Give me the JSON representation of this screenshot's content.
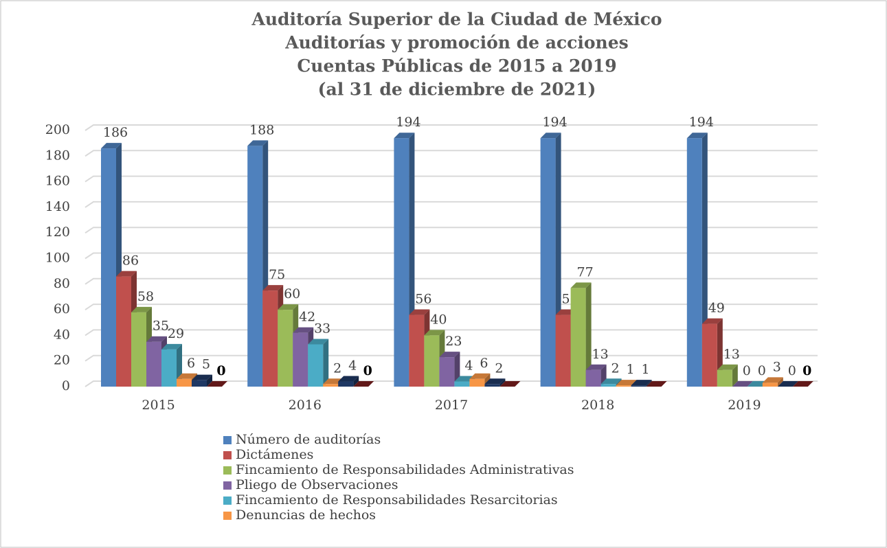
{
  "chart_data": {
    "type": "bar3d",
    "title": [
      "Auditoría Superior de la Ciudad de México",
      "Auditorías y promoción de acciones",
      "Cuentas Públicas de 2015 a 2019",
      "(al 31 de diciembre de 2021)"
    ],
    "categories": [
      "2015",
      "2016",
      "2017",
      "2018",
      "2019"
    ],
    "series": [
      {
        "name": "Número de auditorías",
        "color": "#4f81bd",
        "values": [
          186,
          188,
          194,
          194,
          194
        ]
      },
      {
        "name": "Dictámenes",
        "color": "#c0504d",
        "values": [
          86,
          75,
          56,
          56,
          49
        ]
      },
      {
        "name": "Fincamiento de Responsabilidades Administrativas",
        "color": "#9bbb59",
        "values": [
          58,
          60,
          40,
          77,
          13
        ]
      },
      {
        "name": "Pliego de Observaciones",
        "color": "#8064a2",
        "values": [
          35,
          42,
          23,
          13,
          0
        ]
      },
      {
        "name": "Fincamiento de Responsabilidades Resarcitorias",
        "color": "#4bacc6",
        "values": [
          29,
          33,
          4,
          2,
          0
        ]
      },
      {
        "name": "Denuncias de hechos",
        "color": "#f79646",
        "values": [
          6,
          2,
          6,
          1,
          3
        ]
      },
      {
        "name": null,
        "color": "#1f3864",
        "values": [
          5,
          4,
          2,
          1,
          0
        ]
      },
      {
        "name": null,
        "color": "#7b1f1f",
        "values": [
          0,
          0,
          0,
          0,
          0
        ],
        "value_labels": [
          "0",
          "0",
          null,
          null,
          "0"
        ]
      }
    ],
    "ylim": [
      0,
      200
    ],
    "yticks": [
      0,
      20,
      40,
      60,
      80,
      100,
      120,
      140,
      160,
      180,
      200
    ],
    "grid": true
  }
}
